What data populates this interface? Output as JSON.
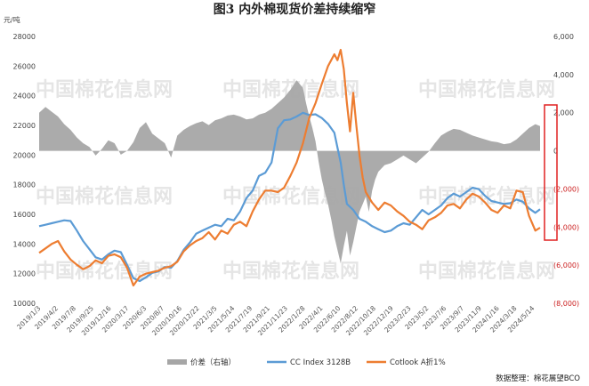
{
  "chart_data": {
    "type": "line",
    "title": "图3  内外棉现货价差持续缩窄",
    "y_unit": "元/吨",
    "ylim_left": [
      10000,
      28000
    ],
    "ylim_right": [
      -8000,
      6000
    ],
    "left_ticks": [
      "28000",
      "26000",
      "24000",
      "22000",
      "20000",
      "18000",
      "16000",
      "14000",
      "12000",
      "10000"
    ],
    "right_ticks": [
      "6,000",
      "4,000",
      "2,000",
      "0",
      "(2,000)",
      "(4,000)",
      "(6,000)",
      "(8,000)"
    ],
    "right_tick_colors": [
      "#444444",
      "#444444",
      "#444444",
      "#444444",
      "#cc2222",
      "#cc2222",
      "#cc2222",
      "#cc2222"
    ],
    "x_tick_labels": [
      "2019/1/3",
      "2019/4/2",
      "2019/7/8",
      "2019/9/25",
      "2019/12/16",
      "2020/3/17",
      "2020/6/3",
      "2020/8/7",
      "2020/10/16",
      "2020/12/22",
      "2021/3/5",
      "2021/5/14",
      "2021/7/19",
      "2021/9/21",
      "2021/11/23",
      "2022/1/28",
      "2022/4/1",
      "2022/6/10",
      "2022/8/12",
      "2022/10/18",
      "2022/12/19",
      "2023/2/23",
      "2023/5/2",
      "2023/7/6",
      "2023/9/7",
      "2023/11/9",
      "2024/1/16",
      "2024/3/18",
      "2024/5/14"
    ],
    "series": [
      {
        "name": "价差（右轴）",
        "type": "area",
        "axis": "right",
        "color": "#a6a6a6",
        "points": [
          [
            0,
            2000
          ],
          [
            4,
            2300
          ],
          [
            8,
            2050
          ],
          [
            12,
            1800
          ],
          [
            16,
            1400
          ],
          [
            20,
            1100
          ],
          [
            24,
            700
          ],
          [
            28,
            400
          ],
          [
            32,
            200
          ],
          [
            36,
            -250
          ],
          [
            40,
            100
          ],
          [
            44,
            550
          ],
          [
            48,
            400
          ],
          [
            52,
            -200
          ],
          [
            56,
            0
          ],
          [
            60,
            450
          ],
          [
            64,
            1200
          ],
          [
            68,
            1500
          ],
          [
            72,
            900
          ],
          [
            76,
            650
          ],
          [
            80,
            400
          ],
          [
            84,
            -350
          ],
          [
            88,
            800
          ],
          [
            92,
            1100
          ],
          [
            96,
            1300
          ],
          [
            100,
            1450
          ],
          [
            104,
            1550
          ],
          [
            108,
            1350
          ],
          [
            112,
            1600
          ],
          [
            116,
            1700
          ],
          [
            120,
            1850
          ],
          [
            124,
            1900
          ],
          [
            128,
            1800
          ],
          [
            132,
            1650
          ],
          [
            136,
            1700
          ],
          [
            140,
            1900
          ],
          [
            144,
            2000
          ],
          [
            148,
            2200
          ],
          [
            152,
            2500
          ],
          [
            156,
            2800
          ],
          [
            160,
            3200
          ],
          [
            164,
            3700
          ],
          [
            168,
            3300
          ],
          [
            170,
            2500
          ],
          [
            172,
            1800
          ],
          [
            174,
            1200
          ],
          [
            176,
            500
          ],
          [
            178,
            -600
          ],
          [
            180,
            -1500
          ],
          [
            182,
            -2200
          ],
          [
            184,
            -2800
          ],
          [
            186,
            -3600
          ],
          [
            188,
            -4500
          ],
          [
            190,
            -5200
          ],
          [
            192,
            -5900
          ],
          [
            194,
            -5000
          ],
          [
            196,
            -4200
          ],
          [
            198,
            -5500
          ],
          [
            200,
            -4800
          ],
          [
            202,
            -4000
          ],
          [
            204,
            -3200
          ],
          [
            206,
            -2800
          ],
          [
            208,
            -2400
          ],
          [
            210,
            -3200
          ],
          [
            212,
            -2100
          ],
          [
            214,
            -1500
          ],
          [
            216,
            -1100
          ],
          [
            220,
            -750
          ],
          [
            224,
            -650
          ],
          [
            228,
            -450
          ],
          [
            232,
            -250
          ],
          [
            236,
            -450
          ],
          [
            240,
            -650
          ],
          [
            244,
            -350
          ],
          [
            248,
            -50
          ],
          [
            252,
            400
          ],
          [
            256,
            800
          ],
          [
            260,
            1000
          ],
          [
            264,
            1150
          ],
          [
            268,
            1100
          ],
          [
            272,
            950
          ],
          [
            276,
            800
          ],
          [
            280,
            700
          ],
          [
            284,
            600
          ],
          [
            288,
            500
          ],
          [
            292,
            450
          ],
          [
            296,
            350
          ],
          [
            300,
            400
          ],
          [
            304,
            600
          ],
          [
            308,
            900
          ],
          [
            312,
            1200
          ],
          [
            316,
            1400
          ],
          [
            319,
            1300
          ]
        ]
      },
      {
        "name": "CC Index 3128B",
        "type": "line",
        "axis": "left",
        "color": "#5b9bd5",
        "points": [
          [
            0,
            15200
          ],
          [
            4,
            15300
          ],
          [
            8,
            15400
          ],
          [
            12,
            15500
          ],
          [
            16,
            15600
          ],
          [
            20,
            15550
          ],
          [
            24,
            14900
          ],
          [
            28,
            14200
          ],
          [
            32,
            13650
          ],
          [
            36,
            13100
          ],
          [
            40,
            12950
          ],
          [
            44,
            13300
          ],
          [
            48,
            13550
          ],
          [
            52,
            13450
          ],
          [
            56,
            12600
          ],
          [
            60,
            11700
          ],
          [
            64,
            11500
          ],
          [
            68,
            11750
          ],
          [
            72,
            12050
          ],
          [
            76,
            12150
          ],
          [
            80,
            12450
          ],
          [
            84,
            12400
          ],
          [
            88,
            12850
          ],
          [
            92,
            13600
          ],
          [
            96,
            14100
          ],
          [
            100,
            14700
          ],
          [
            104,
            14900
          ],
          [
            108,
            15100
          ],
          [
            112,
            15300
          ],
          [
            116,
            15200
          ],
          [
            120,
            15700
          ],
          [
            124,
            15600
          ],
          [
            128,
            16200
          ],
          [
            132,
            17100
          ],
          [
            136,
            17600
          ],
          [
            140,
            18600
          ],
          [
            144,
            18800
          ],
          [
            148,
            19500
          ],
          [
            152,
            21800
          ],
          [
            156,
            22350
          ],
          [
            160,
            22400
          ],
          [
            164,
            22600
          ],
          [
            168,
            22850
          ],
          [
            172,
            22700
          ],
          [
            176,
            22750
          ],
          [
            180,
            22500
          ],
          [
            184,
            22100
          ],
          [
            188,
            21500
          ],
          [
            190,
            20500
          ],
          [
            192,
            19500
          ],
          [
            194,
            18000
          ],
          [
            196,
            16700
          ],
          [
            200,
            16300
          ],
          [
            204,
            15700
          ],
          [
            208,
            15500
          ],
          [
            212,
            15200
          ],
          [
            216,
            15000
          ],
          [
            220,
            14800
          ],
          [
            224,
            14900
          ],
          [
            228,
            15200
          ],
          [
            232,
            15400
          ],
          [
            236,
            15300
          ],
          [
            240,
            15800
          ],
          [
            244,
            16300
          ],
          [
            248,
            16000
          ],
          [
            252,
            16300
          ],
          [
            256,
            16600
          ],
          [
            260,
            17100
          ],
          [
            264,
            17400
          ],
          [
            268,
            17200
          ],
          [
            272,
            17500
          ],
          [
            276,
            17800
          ],
          [
            280,
            17700
          ],
          [
            284,
            17250
          ],
          [
            288,
            16900
          ],
          [
            292,
            16800
          ],
          [
            296,
            16700
          ],
          [
            300,
            16750
          ],
          [
            304,
            17000
          ],
          [
            308,
            16850
          ],
          [
            312,
            16400
          ],
          [
            316,
            16100
          ],
          [
            319,
            16350
          ]
        ]
      },
      {
        "name": "Cotlook A折1%",
        "type": "line",
        "axis": "left",
        "color": "#ed7d31",
        "points": [
          [
            0,
            13400
          ],
          [
            4,
            13700
          ],
          [
            8,
            14000
          ],
          [
            12,
            14200
          ],
          [
            16,
            13500
          ],
          [
            20,
            12950
          ],
          [
            24,
            12600
          ],
          [
            28,
            12300
          ],
          [
            32,
            12500
          ],
          [
            36,
            12900
          ],
          [
            40,
            12700
          ],
          [
            44,
            13200
          ],
          [
            48,
            13300
          ],
          [
            52,
            13100
          ],
          [
            56,
            12400
          ],
          [
            60,
            11200
          ],
          [
            64,
            11800
          ],
          [
            68,
            12000
          ],
          [
            72,
            12100
          ],
          [
            76,
            12200
          ],
          [
            80,
            12400
          ],
          [
            84,
            12500
          ],
          [
            88,
            12800
          ],
          [
            92,
            13500
          ],
          [
            96,
            13900
          ],
          [
            100,
            14200
          ],
          [
            104,
            14400
          ],
          [
            108,
            14800
          ],
          [
            112,
            14300
          ],
          [
            116,
            14900
          ],
          [
            120,
            14700
          ],
          [
            124,
            15300
          ],
          [
            128,
            15500
          ],
          [
            132,
            15200
          ],
          [
            136,
            16200
          ],
          [
            140,
            17000
          ],
          [
            144,
            17600
          ],
          [
            148,
            17600
          ],
          [
            152,
            17500
          ],
          [
            156,
            17800
          ],
          [
            160,
            18600
          ],
          [
            164,
            19500
          ],
          [
            168,
            20800
          ],
          [
            172,
            22500
          ],
          [
            176,
            23500
          ],
          [
            180,
            24800
          ],
          [
            184,
            26000
          ],
          [
            188,
            26800
          ],
          [
            190,
            26400
          ],
          [
            192,
            27100
          ],
          [
            194,
            25800
          ],
          [
            196,
            23500
          ],
          [
            198,
            21600
          ],
          [
            200,
            24200
          ],
          [
            202,
            22000
          ],
          [
            204,
            20000
          ],
          [
            206,
            18500
          ],
          [
            208,
            17500
          ],
          [
            212,
            16800
          ],
          [
            216,
            16300
          ],
          [
            220,
            16800
          ],
          [
            224,
            16600
          ],
          [
            228,
            16200
          ],
          [
            232,
            15900
          ],
          [
            236,
            15500
          ],
          [
            240,
            15300
          ],
          [
            244,
            15000
          ],
          [
            248,
            15600
          ],
          [
            252,
            15800
          ],
          [
            256,
            16100
          ],
          [
            260,
            16600
          ],
          [
            264,
            16700
          ],
          [
            268,
            16400
          ],
          [
            272,
            17000
          ],
          [
            276,
            17400
          ],
          [
            280,
            17200
          ],
          [
            284,
            16800
          ],
          [
            288,
            16300
          ],
          [
            292,
            16100
          ],
          [
            296,
            16600
          ],
          [
            300,
            16400
          ],
          [
            304,
            17600
          ],
          [
            308,
            17500
          ],
          [
            312,
            15900
          ],
          [
            316,
            14900
          ],
          [
            319,
            15100
          ]
        ]
      }
    ],
    "legend": [
      "价差（右轴）",
      "CC Index 3128B",
      "Cotlook A折1%"
    ],
    "legend_position": "bottom",
    "grid": false
  },
  "watermark": "中国棉花信息网",
  "source": "数据整理：棉花展望BCO"
}
